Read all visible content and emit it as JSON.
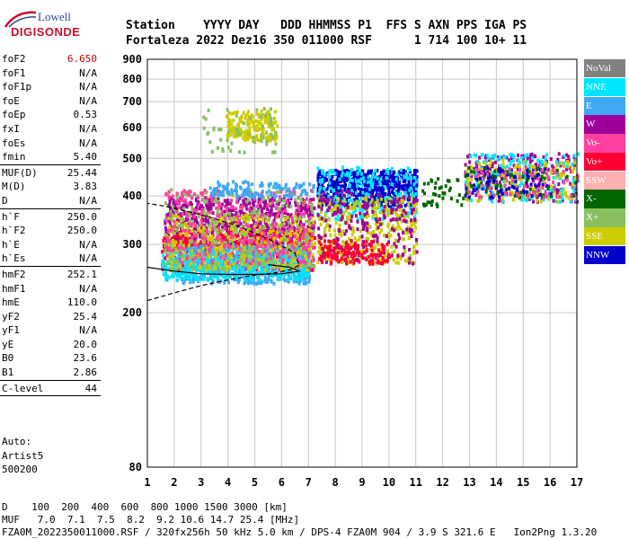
{
  "logo": {
    "line1": "Lowell",
    "line2": "DIGISONDE"
  },
  "header": {
    "labels": "Station    YYYY DAY   DDD HHMMSS P1  FFS S AXN PPS IGA PS",
    "values": "Fortaleza 2022 Dez16 350 011000 RSF      1 714 100 10+ 11"
  },
  "params": [
    {
      "name": "foF2",
      "value": "6.650",
      "value_color": "#cc0000"
    },
    {
      "name": "foF1",
      "value": "N/A"
    },
    {
      "name": "foF1p",
      "value": "N/A"
    },
    {
      "name": "foE",
      "value": "N/A"
    },
    {
      "name": "foEp",
      "value": "0.53"
    },
    {
      "name": "fxI",
      "value": "N/A"
    },
    {
      "name": "foEs",
      "value": "N/A"
    },
    {
      "name": "fmin",
      "value": "5.40",
      "sep_after": true
    },
    {
      "name": "MUF(D)",
      "value": "25.44"
    },
    {
      "name": "M(D)",
      "value": "3.83"
    },
    {
      "name": "D",
      "value": "N/A",
      "sep_after": true
    },
    {
      "name": "h`F",
      "value": "250.0"
    },
    {
      "name": "h`F2",
      "value": "250.0"
    },
    {
      "name": "h`E",
      "value": "N/A"
    },
    {
      "name": "h`Es",
      "value": "N/A",
      "sep_after": true
    },
    {
      "name": "hmF2",
      "value": "252.1"
    },
    {
      "name": "hmF1",
      "value": "N/A"
    },
    {
      "name": "hmE",
      "value": "110.0"
    },
    {
      "name": "yF2",
      "value": "25.4"
    },
    {
      "name": "yF1",
      "value": "N/A"
    },
    {
      "name": "yE",
      "value": "20.0"
    },
    {
      "name": "B0",
      "value": "23.6"
    },
    {
      "name": "B1",
      "value": "2.86",
      "sep_after": true
    },
    {
      "name": "C-level",
      "value": "44",
      "sep_after": true
    }
  ],
  "auto": {
    "line1": "Auto:",
    "line2": "Artist5",
    "line3": "500200"
  },
  "legend": [
    {
      "label": "NoVal",
      "color": "#808080"
    },
    {
      "label": "NNE",
      "color": "#00e5ff"
    },
    {
      "label": "E",
      "color": "#3fa9f5"
    },
    {
      "label": "W",
      "color": "#a0009a"
    },
    {
      "label": "Vo-",
      "color": "#ff40a0"
    },
    {
      "label": "Vo+",
      "color": "#ff0033"
    },
    {
      "label": "SSW",
      "color": "#ffb0b0"
    },
    {
      "label": "X-",
      "color": "#006600"
    },
    {
      "label": "X+",
      "color": "#88c060"
    },
    {
      "label": "SSE",
      "color": "#cccc00"
    },
    {
      "label": "NNW",
      "color": "#0000cc"
    }
  ],
  "footer": {
    "line1": "D    100  200  400  600  800 1000 1500 3000 [km]",
    "line2": "MUF   7.0  7.1  7.5  8.2  9.2 10.6 14.7 25.4 [MHz]",
    "line3": "FZA0M_2022350011000.RSF / 320fx256h 50 kHz 5.0 km / DPS-4 FZA0M 904 / 3.9 S 321.6 E   Ion2Png 1.3.20"
  },
  "chart_data": {
    "type": "scatter",
    "title": "",
    "xlabel": "",
    "ylabel": "",
    "xlim": [
      1,
      17
    ],
    "ylim": [
      80,
      900
    ],
    "y_scale": "log",
    "x_ticks": [
      1,
      2,
      3,
      4,
      5,
      6,
      7,
      8,
      9,
      10,
      11,
      12,
      13,
      14,
      15,
      16,
      17
    ],
    "y_ticks": [
      80,
      200,
      300,
      400,
      500,
      600,
      700,
      800,
      900
    ],
    "grid": true,
    "legend_position": "right",
    "clusters": [
      {
        "name": "W",
        "x": [
          1.6,
          7.2
        ],
        "y": [
          300,
          400
        ],
        "n": 700,
        "color": "#a0009a"
      },
      {
        "name": "Vo+",
        "x": [
          1.5,
          7.2
        ],
        "y": [
          260,
          330
        ],
        "n": 500,
        "color": "#ff0033"
      },
      {
        "name": "E",
        "x": [
          2.0,
          7.0
        ],
        "y": [
          240,
          300
        ],
        "n": 600,
        "color": "#3fa9f5"
      },
      {
        "name": "NNE",
        "x": [
          1.5,
          7.0
        ],
        "y": [
          245,
          290
        ],
        "n": 400,
        "color": "#00e5ff"
      },
      {
        "name": "SSE",
        "x": [
          1.7,
          7.2
        ],
        "y": [
          260,
          360
        ],
        "n": 400,
        "color": "#cccc00"
      },
      {
        "name": "X+",
        "x": [
          1.6,
          7.2
        ],
        "y": [
          260,
          420
        ],
        "n": 300,
        "color": "#88c060"
      },
      {
        "name": "Vo-",
        "x": [
          1.6,
          7.2
        ],
        "y": [
          270,
          420
        ],
        "n": 300,
        "color": "#ff40a0"
      },
      {
        "name": "E",
        "x": [
          3.3,
          7.2
        ],
        "y": [
          400,
          440
        ],
        "n": 120,
        "color": "#3fa9f5"
      },
      {
        "name": "SSE",
        "x": [
          3.9,
          5.8
        ],
        "y": [
          560,
          670
        ],
        "n": 180,
        "color": "#cccc00"
      },
      {
        "name": "X+",
        "x": [
          3.0,
          5.8
        ],
        "y": [
          520,
          680
        ],
        "n": 60,
        "color": "#88c060"
      },
      {
        "name": "NNW",
        "x": [
          7.3,
          11.0
        ],
        "y": [
          380,
          470
        ],
        "n": 600,
        "color": "#0000cc"
      },
      {
        "name": "NNE",
        "x": [
          7.3,
          11.0
        ],
        "y": [
          350,
          480
        ],
        "n": 220,
        "color": "#00e5ff"
      },
      {
        "name": "SSE",
        "x": [
          7.3,
          11.0
        ],
        "y": [
          270,
          400
        ],
        "n": 350,
        "color": "#cccc00"
      },
      {
        "name": "W",
        "x": [
          7.3,
          11.0
        ],
        "y": [
          270,
          420
        ],
        "n": 200,
        "color": "#a0009a"
      },
      {
        "name": "Vo+",
        "x": [
          7.3,
          10.0
        ],
        "y": [
          270,
          310
        ],
        "n": 150,
        "color": "#ff0033"
      },
      {
        "name": "X-",
        "x": [
          11.2,
          12.8
        ],
        "y": [
          380,
          450
        ],
        "n": 40,
        "color": "#006600"
      },
      {
        "name": "W",
        "x": [
          12.8,
          17.0
        ],
        "y": [
          390,
          520
        ],
        "n": 220,
        "color": "#a0009a"
      },
      {
        "name": "NNE",
        "x": [
          12.8,
          17.0
        ],
        "y": [
          390,
          520
        ],
        "n": 160,
        "color": "#00e5ff"
      },
      {
        "name": "SSE",
        "x": [
          12.8,
          17.0
        ],
        "y": [
          390,
          500
        ],
        "n": 150,
        "color": "#cccc00"
      },
      {
        "name": "NNW",
        "x": [
          12.8,
          16.0
        ],
        "y": [
          400,
          480
        ],
        "n": 80,
        "color": "#0000cc"
      },
      {
        "name": "X-",
        "x": [
          12.8,
          17.0
        ],
        "y": [
          400,
          480
        ],
        "n": 50,
        "color": "#006600"
      },
      {
        "name": "Vo-",
        "x": [
          12.8,
          17.0
        ],
        "y": [
          400,
          480
        ],
        "n": 60,
        "color": "#ff40a0"
      }
    ],
    "profile_dashed": [
      [
        1.0,
        215
      ],
      [
        2.0,
        225
      ],
      [
        3.0,
        235
      ],
      [
        4.0,
        243
      ],
      [
        5.0,
        250
      ],
      [
        5.7,
        253
      ],
      [
        6.3,
        258
      ],
      [
        6.65,
        265
      ],
      [
        6.5,
        285
      ],
      [
        5.5,
        310
      ],
      [
        4.5,
        332
      ],
      [
        3.5,
        350
      ],
      [
        2.5,
        365
      ],
      [
        1.5,
        378
      ],
      [
        1.0,
        383
      ]
    ],
    "profile_solid": [
      [
        1.0,
        262
      ],
      [
        2.0,
        256
      ],
      [
        3.0,
        252
      ],
      [
        4.0,
        251
      ],
      [
        5.0,
        251
      ],
      [
        6.0,
        252
      ],
      [
        6.65,
        256
      ],
      [
        6.3,
        262
      ],
      [
        5.5,
        266
      ]
    ]
  }
}
